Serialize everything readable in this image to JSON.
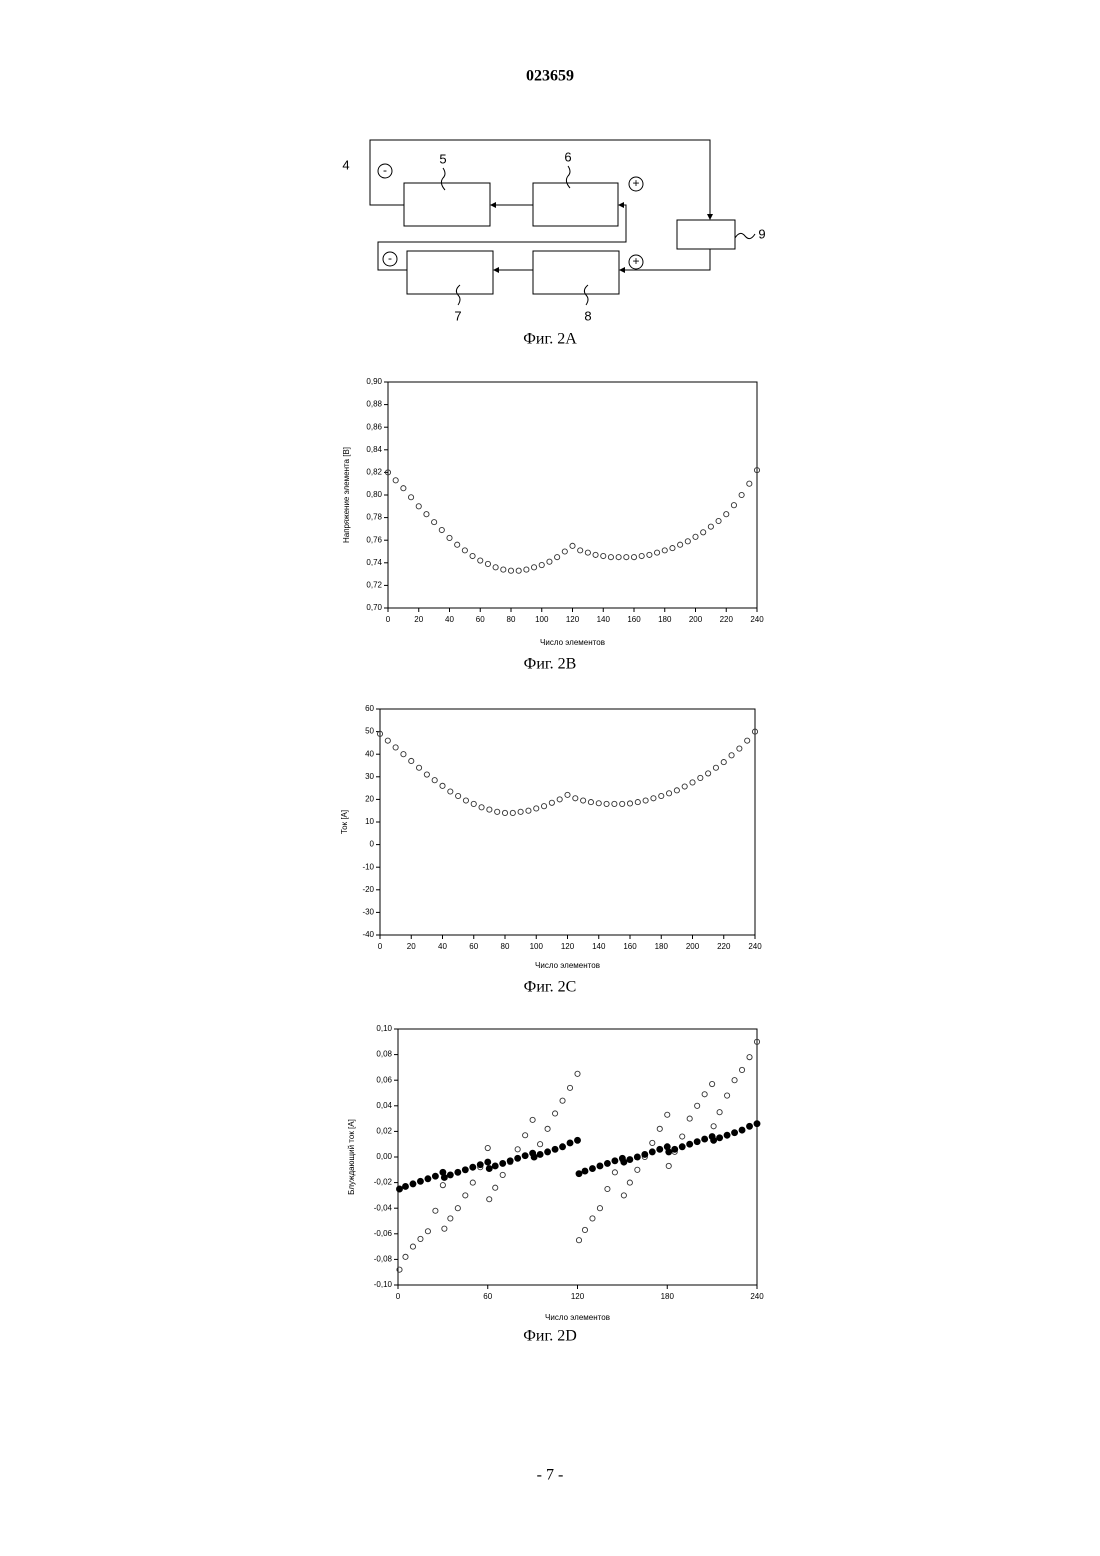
{
  "header": {
    "number": "023659"
  },
  "diagram": {
    "labels": [
      "4",
      "5",
      "6",
      "7",
      "8",
      "9"
    ],
    "signs": [
      "-",
      "+",
      "-",
      "+"
    ],
    "caption": "Фиг. 2A"
  },
  "chart_data": [
    {
      "type": "scatter",
      "caption": "Фиг. 2B",
      "x_label": "Число элементов",
      "y_label": "Напряжение элемента [В]",
      "marker": "open",
      "color": "#333333",
      "x": [
        0,
        5,
        10,
        15,
        20,
        25,
        30,
        35,
        40,
        45,
        50,
        55,
        60,
        65,
        70,
        75,
        80,
        85,
        90,
        95,
        100,
        105,
        110,
        115,
        120,
        125,
        130,
        135,
        140,
        145,
        150,
        155,
        160,
        165,
        170,
        175,
        180,
        185,
        190,
        195,
        200,
        205,
        210,
        215,
        220,
        225,
        230,
        235,
        240
      ],
      "values": [
        0.82,
        0.813,
        0.806,
        0.798,
        0.79,
        0.783,
        0.776,
        0.769,
        0.762,
        0.756,
        0.751,
        0.746,
        0.742,
        0.739,
        0.736,
        0.734,
        0.733,
        0.733,
        0.734,
        0.736,
        0.738,
        0.741,
        0.745,
        0.75,
        0.755,
        0.751,
        0.749,
        0.747,
        0.746,
        0.745,
        0.745,
        0.745,
        0.745,
        0.746,
        0.747,
        0.749,
        0.751,
        0.753,
        0.756,
        0.759,
        0.763,
        0.767,
        0.772,
        0.777,
        0.783,
        0.791,
        0.8,
        0.81,
        0.822
      ],
      "xlim": [
        0,
        240
      ],
      "xticks": [
        0,
        20,
        40,
        60,
        80,
        100,
        120,
        140,
        160,
        180,
        200,
        220,
        240
      ],
      "ylim": [
        0.7,
        0.9
      ],
      "yticks": [
        {
          "value": 0.7,
          "label": "0,70"
        },
        {
          "value": 0.72,
          "label": "0,72"
        },
        {
          "value": 0.74,
          "label": "0,74"
        },
        {
          "value": 0.76,
          "label": "0,76"
        },
        {
          "value": 0.78,
          "label": "0,78"
        },
        {
          "value": 0.8,
          "label": "0,80"
        },
        {
          "value": 0.82,
          "label": "0,82"
        },
        {
          "value": 0.84,
          "label": "0,84"
        },
        {
          "value": 0.86,
          "label": "0,86"
        },
        {
          "value": 0.88,
          "label": "0,88"
        },
        {
          "value": 0.9,
          "label": "0,90"
        }
      ]
    },
    {
      "type": "scatter",
      "caption": "Фиг. 2C",
      "x_label": "Число элементов",
      "y_label": "Ток [A]",
      "marker": "open",
      "color": "#333333",
      "x": [
        0,
        5,
        10,
        15,
        20,
        25,
        30,
        35,
        40,
        45,
        50,
        55,
        60,
        65,
        70,
        75,
        80,
        85,
        90,
        95,
        100,
        105,
        110,
        115,
        120,
        125,
        130,
        135,
        140,
        145,
        150,
        155,
        160,
        165,
        170,
        175,
        180,
        185,
        190,
        195,
        200,
        205,
        210,
        215,
        220,
        225,
        230,
        235,
        240
      ],
      "values": [
        49,
        46,
        43,
        40,
        37,
        34,
        31,
        28.5,
        26,
        23.5,
        21.5,
        19.5,
        18,
        16.5,
        15.5,
        14.5,
        14,
        14,
        14.5,
        15,
        16,
        17,
        18.5,
        20,
        22,
        20.5,
        19.5,
        18.8,
        18.3,
        18,
        18,
        18,
        18.2,
        18.8,
        19.5,
        20.5,
        21.5,
        22.7,
        24,
        25.7,
        27.5,
        29.5,
        31.5,
        34,
        36.5,
        39.5,
        42.5,
        46,
        50
      ],
      "xlim": [
        0,
        240
      ],
      "xticks": [
        0,
        20,
        40,
        60,
        80,
        100,
        120,
        140,
        160,
        180,
        200,
        220,
        240
      ],
      "ylim": [
        -40,
        60
      ],
      "yticks": [
        -40,
        -30,
        -20,
        -10,
        0,
        10,
        20,
        30,
        40,
        50,
        60
      ]
    },
    {
      "type": "scatter",
      "caption": "Фиг. 2D",
      "x_label": "Число элементов",
      "y_label": "Блуждающий ток [A]",
      "series": [
        {
          "marker": "open",
          "color": "#333333",
          "x": [
            1,
            5,
            10,
            15,
            20,
            25,
            30,
            31,
            35,
            40,
            45,
            50,
            55,
            60,
            61,
            65,
            70,
            75,
            80,
            85,
            90,
            91,
            95,
            100,
            105,
            110,
            115,
            120,
            121,
            125,
            130,
            135,
            140,
            145,
            150,
            151,
            155,
            160,
            165,
            170,
            175,
            180,
            181,
            185,
            190,
            195,
            200,
            205,
            210,
            211,
            215,
            220,
            225,
            230,
            235,
            240
          ],
          "values": [
            -0.088,
            -0.078,
            -0.07,
            -0.064,
            -0.058,
            -0.042,
            -0.022,
            -0.056,
            -0.048,
            -0.04,
            -0.03,
            -0.02,
            -0.008,
            0.007,
            -0.033,
            -0.024,
            -0.014,
            -0.004,
            0.006,
            0.017,
            0.029,
            0.0,
            0.01,
            0.022,
            0.034,
            0.044,
            0.054,
            0.065,
            -0.065,
            -0.057,
            -0.048,
            -0.04,
            -0.025,
            -0.012,
            -0.002,
            -0.03,
            -0.02,
            -0.01,
            0.0,
            0.011,
            0.022,
            0.033,
            -0.007,
            0.004,
            0.016,
            0.03,
            0.04,
            0.049,
            0.057,
            0.024,
            0.035,
            0.048,
            0.06,
            0.068,
            0.078,
            0.09
          ]
        },
        {
          "marker": "filled",
          "color": "#000000",
          "x": [
            1,
            5,
            10,
            15,
            20,
            25,
            30,
            31,
            35,
            40,
            45,
            50,
            55,
            60,
            61,
            65,
            70,
            75,
            80,
            85,
            90,
            91,
            95,
            100,
            105,
            110,
            115,
            120,
            121,
            125,
            130,
            135,
            140,
            145,
            150,
            151,
            155,
            160,
            165,
            170,
            175,
            180,
            181,
            185,
            190,
            195,
            200,
            205,
            210,
            211,
            215,
            220,
            225,
            230,
            235,
            240
          ],
          "values": [
            -0.025,
            -0.023,
            -0.021,
            -0.019,
            -0.017,
            -0.015,
            -0.012,
            -0.016,
            -0.014,
            -0.012,
            -0.01,
            -0.008,
            -0.006,
            -0.004,
            -0.009,
            -0.007,
            -0.005,
            -0.003,
            -0.001,
            0.001,
            0.003,
            0.0,
            0.002,
            0.004,
            0.006,
            0.008,
            0.011,
            0.013,
            -0.013,
            -0.011,
            -0.009,
            -0.007,
            -0.005,
            -0.003,
            -0.001,
            -0.004,
            -0.002,
            0.0,
            0.002,
            0.004,
            0.006,
            0.008,
            0.004,
            0.006,
            0.008,
            0.01,
            0.012,
            0.014,
            0.016,
            0.013,
            0.015,
            0.017,
            0.019,
            0.021,
            0.024,
            0.026
          ]
        }
      ],
      "xlim": [
        0,
        240
      ],
      "xticks": [
        0,
        60,
        120,
        180,
        240
      ],
      "ylim": [
        -0.1,
        0.1
      ],
      "yticks": [
        {
          "value": -0.1,
          "label": "-0,10"
        },
        {
          "value": -0.08,
          "label": "-0,08"
        },
        {
          "value": -0.06,
          "label": "-0,06"
        },
        {
          "value": -0.04,
          "label": "-0,04"
        },
        {
          "value": -0.02,
          "label": "-0,02"
        },
        {
          "value": 0,
          "label": "0,00"
        },
        {
          "value": 0.02,
          "label": "0,02"
        },
        {
          "value": 0.04,
          "label": "0,04"
        },
        {
          "value": 0.06,
          "label": "0,06"
        },
        {
          "value": 0.08,
          "label": "0,08"
        },
        {
          "value": 0.1,
          "label": "0,10"
        }
      ]
    }
  ],
  "footer": {
    "page": "- 7 -"
  }
}
